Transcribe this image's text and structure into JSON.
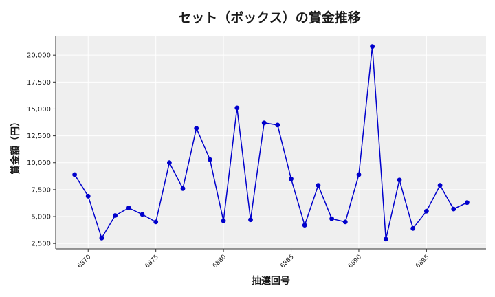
{
  "chart_data": {
    "type": "line",
    "title": "セット（ボックス）の賞金推移",
    "xlabel": "抽選回号",
    "ylabel": "賞金額（円）",
    "x": [
      6869,
      6870,
      6871,
      6872,
      6873,
      6874,
      6875,
      6876,
      6877,
      6878,
      6879,
      6880,
      6881,
      6882,
      6883,
      6884,
      6885,
      6886,
      6887,
      6888,
      6889,
      6890,
      6891,
      6892,
      6893,
      6894,
      6895,
      6896,
      6897,
      6898
    ],
    "series": [
      {
        "values": [
          8900,
          6900,
          3000,
          5100,
          5800,
          5200,
          4500,
          10000,
          7600,
          13200,
          10300,
          4600,
          15100,
          4700,
          13700,
          13500,
          8500,
          4200,
          7900,
          4800,
          4500,
          8900,
          20800,
          2900,
          8400,
          3900,
          5500,
          7900,
          5700,
          6300
        ],
        "color": "#0000cc"
      }
    ],
    "xlim": [
      6867.6,
      6899.4
    ],
    "ylim": [
      2000,
      21800
    ],
    "xticks": [
      6870,
      6875,
      6880,
      6885,
      6890,
      6895
    ],
    "xtick_labels": [
      "6870",
      "6875",
      "6880",
      "6885",
      "6890",
      "6895"
    ],
    "yticks": [
      2500,
      5000,
      7500,
      10000,
      12500,
      15000,
      17500,
      20000
    ],
    "ytick_labels": [
      "2,500",
      "5,000",
      "7,500",
      "10,000",
      "12,500",
      "15,000",
      "17,500",
      "20,000"
    ],
    "grid": true,
    "plot_background": "#efefef"
  }
}
